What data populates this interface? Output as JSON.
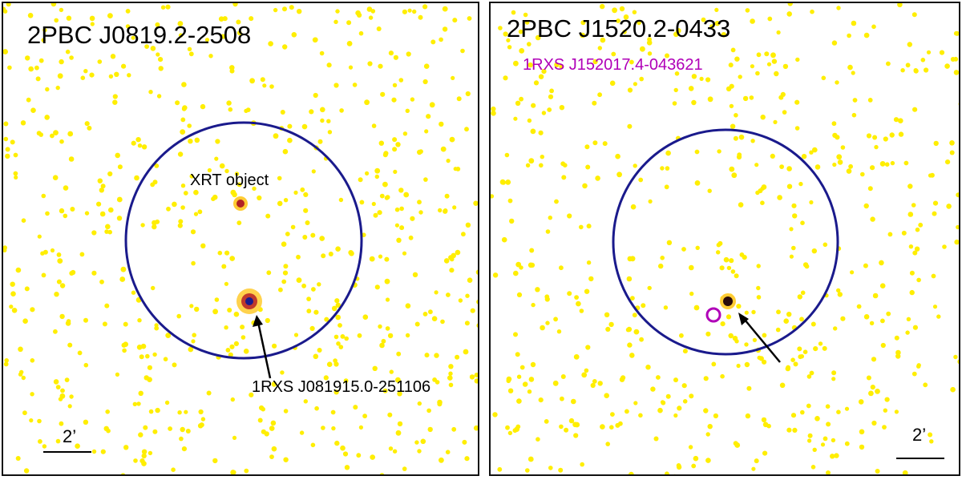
{
  "panels": [
    {
      "title": "2PBC J0819.2-2508",
      "labels": {
        "xrt_object": "XRT object",
        "source": "1RXS J081915.0-251106"
      },
      "scale_label": "2’"
    },
    {
      "title": "2PBC J1520.2-0433",
      "labels": {
        "rosat_source": "1RXS J152017.4-043621"
      },
      "scale_label": "2’"
    }
  ],
  "colors": {
    "background": "#ffffff",
    "photon": "#ffee00",
    "error_circle": "#1a1a8c",
    "rosat_circle": "#b000b8",
    "source_core": "#1a1a8c",
    "source_halo": "#d2691e"
  }
}
